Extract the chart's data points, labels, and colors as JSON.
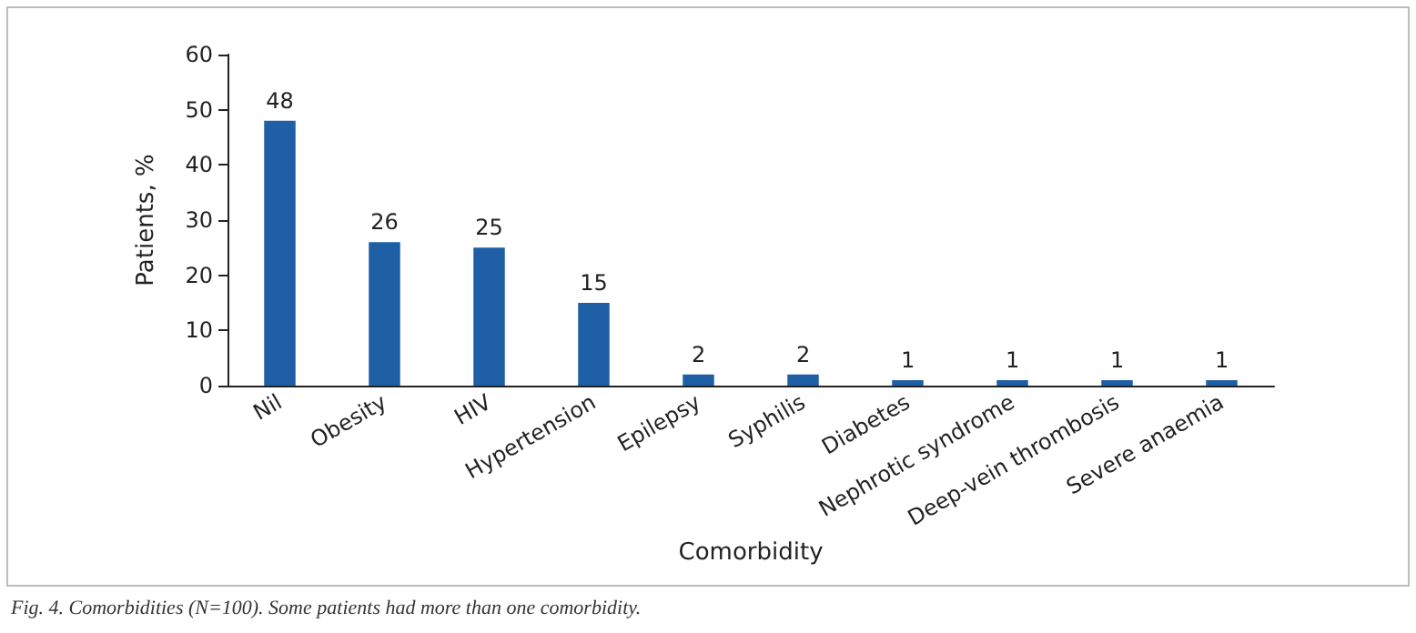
{
  "chart_data": {
    "type": "bar",
    "xlabel": "Comorbidity",
    "ylabel": "Patients, %",
    "categories": [
      "Nil",
      "Obesity",
      "HIV",
      "Hypertension",
      "Epilepsy",
      "Syphilis",
      "Diabetes",
      "Nephrotic syndrome",
      "Deep-vein thrombosis",
      "Severe anaemia"
    ],
    "values": [
      48,
      26,
      25,
      15,
      2,
      2,
      1,
      1,
      1,
      1
    ],
    "color": "#1f5fa6",
    "ylim": [
      0,
      60
    ],
    "yticks": [
      0,
      10,
      20,
      30,
      40,
      50,
      60
    ],
    "data_labels": true,
    "annotations": [
      "Fig. 4. Comorbidities (N=100). Some patients had more than one comorbidity."
    ]
  }
}
